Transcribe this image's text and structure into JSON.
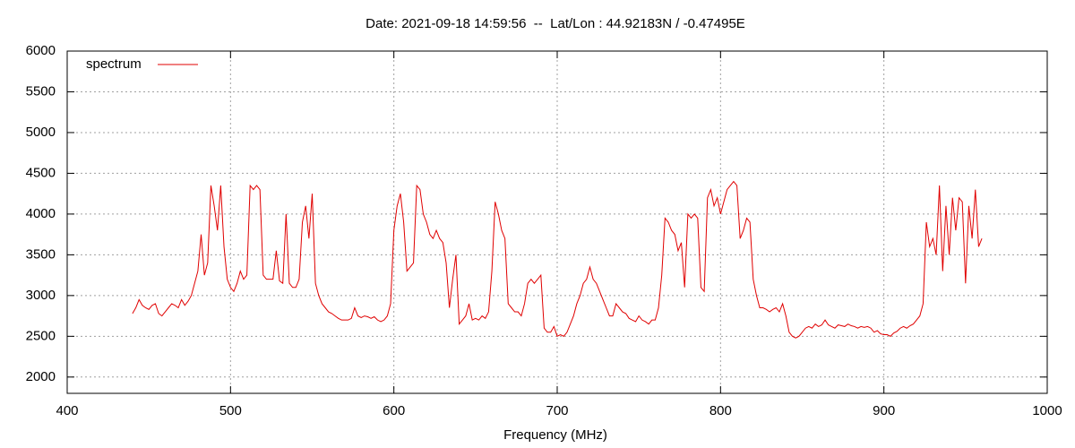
{
  "chart_data": {
    "type": "line",
    "title": "Date: 2021-09-18 14:59:56  --  Lat/Lon : 44.92183N / -0.47495E",
    "x_label": "Frequency (MHz)",
    "xlim": [
      400,
      1000
    ],
    "xticks": [
      400,
      500,
      600,
      700,
      800,
      900,
      1000
    ],
    "ylim": [
      1800,
      6000
    ],
    "yticks": [
      2000,
      2500,
      3000,
      3500,
      4000,
      4500,
      5000,
      5500,
      6000
    ],
    "grid": true,
    "legend": "top-left",
    "x": [
      440,
      442,
      444,
      446,
      448,
      450,
      452,
      454,
      456,
      458,
      460,
      462,
      464,
      466,
      468,
      470,
      472,
      474,
      476,
      478,
      480,
      482,
      484,
      486,
      488,
      490,
      492,
      494,
      496,
      498,
      500,
      502,
      504,
      506,
      508,
      510,
      512,
      514,
      516,
      518,
      520,
      522,
      524,
      526,
      528,
      530,
      532,
      534,
      536,
      538,
      540,
      542,
      544,
      546,
      548,
      550,
      552,
      554,
      556,
      558,
      560,
      562,
      564,
      566,
      568,
      570,
      572,
      574,
      576,
      578,
      580,
      582,
      584,
      586,
      588,
      590,
      592,
      594,
      596,
      598,
      600,
      602,
      604,
      606,
      608,
      610,
      612,
      614,
      616,
      618,
      620,
      622,
      624,
      626,
      628,
      630,
      632,
      634,
      636,
      638,
      640,
      642,
      644,
      646,
      648,
      650,
      652,
      654,
      656,
      658,
      660,
      662,
      664,
      666,
      668,
      670,
      672,
      674,
      676,
      678,
      680,
      682,
      684,
      686,
      688,
      690,
      692,
      694,
      696,
      698,
      700,
      702,
      704,
      706,
      708,
      710,
      712,
      714,
      716,
      718,
      720,
      722,
      724,
      726,
      728,
      730,
      732,
      734,
      736,
      738,
      740,
      742,
      744,
      746,
      748,
      750,
      752,
      754,
      756,
      758,
      760,
      762,
      764,
      766,
      768,
      770,
      772,
      774,
      776,
      778,
      780,
      782,
      784,
      786,
      788,
      790,
      792,
      794,
      796,
      798,
      800,
      802,
      804,
      806,
      808,
      810,
      812,
      814,
      816,
      818,
      820,
      822,
      824,
      826,
      828,
      830,
      832,
      834,
      836,
      838,
      840,
      842,
      844,
      846,
      848,
      850,
      852,
      854,
      856,
      858,
      860,
      862,
      864,
      866,
      868,
      870,
      872,
      874,
      876,
      878,
      880,
      882,
      884,
      886,
      888,
      890,
      892,
      894,
      896,
      898,
      900,
      902,
      904,
      906,
      908,
      910,
      912,
      914,
      916,
      918,
      920,
      922,
      924,
      926,
      928,
      930,
      932,
      934,
      936,
      938,
      940,
      942,
      944,
      946,
      948,
      950,
      952,
      954,
      956,
      958,
      960
    ],
    "series": [
      {
        "name": "spectrum",
        "color": "#e00000",
        "values": [
          2780,
          2850,
          2950,
          2880,
          2850,
          2830,
          2880,
          2900,
          2780,
          2750,
          2800,
          2850,
          2900,
          2880,
          2850,
          2950,
          2880,
          2930,
          3000,
          3150,
          3300,
          3750,
          3250,
          3400,
          4350,
          4100,
          3800,
          4350,
          3600,
          3200,
          3100,
          3050,
          3150,
          3300,
          3200,
          3250,
          4350,
          4300,
          4350,
          4300,
          3250,
          3200,
          3200,
          3200,
          3550,
          3180,
          3150,
          4000,
          3150,
          3100,
          3100,
          3200,
          3900,
          4100,
          3700,
          4250,
          3150,
          3000,
          2900,
          2850,
          2800,
          2780,
          2750,
          2720,
          2700,
          2700,
          2700,
          2720,
          2850,
          2750,
          2730,
          2750,
          2740,
          2720,
          2740,
          2700,
          2680,
          2700,
          2750,
          2900,
          3800,
          4100,
          4250,
          3900,
          3300,
          3350,
          3400,
          4350,
          4300,
          4000,
          3900,
          3750,
          3700,
          3800,
          3700,
          3650,
          3400,
          2850,
          3200,
          3500,
          2650,
          2700,
          2750,
          2900,
          2700,
          2720,
          2700,
          2750,
          2720,
          2800,
          3300,
          4150,
          4000,
          3800,
          3700,
          2900,
          2850,
          2800,
          2800,
          2750,
          2900,
          3150,
          3200,
          3150,
          3200,
          3250,
          2600,
          2550,
          2550,
          2620,
          2500,
          2520,
          2500,
          2550,
          2650,
          2750,
          2900,
          3000,
          3150,
          3200,
          3350,
          3200,
          3150,
          3050,
          2950,
          2850,
          2750,
          2750,
          2900,
          2850,
          2800,
          2780,
          2720,
          2700,
          2680,
          2750,
          2700,
          2680,
          2650,
          2700,
          2700,
          2850,
          3250,
          3950,
          3900,
          3800,
          3750,
          3550,
          3650,
          3100,
          4000,
          3950,
          4000,
          3950,
          3100,
          3050,
          4200,
          4300,
          4100,
          4200,
          4000,
          4150,
          4300,
          4350,
          4400,
          4350,
          3700,
          3800,
          3950,
          3900,
          3200,
          3000,
          2850,
          2850,
          2830,
          2800,
          2830,
          2850,
          2800,
          2900,
          2750,
          2550,
          2500,
          2480,
          2500,
          2550,
          2600,
          2620,
          2600,
          2650,
          2620,
          2640,
          2700,
          2640,
          2620,
          2600,
          2640,
          2630,
          2620,
          2650,
          2630,
          2620,
          2600,
          2620,
          2610,
          2620,
          2600,
          2550,
          2570,
          2530,
          2520,
          2520,
          2500,
          2540,
          2560,
          2600,
          2620,
          2600,
          2630,
          2650,
          2700,
          2750,
          2900,
          3900,
          3600,
          3700,
          3500,
          4350,
          3300,
          4100,
          3500,
          4200,
          3800,
          4200,
          4150,
          3150,
          4100,
          3700,
          4300,
          3600,
          3700
        ]
      }
    ]
  }
}
